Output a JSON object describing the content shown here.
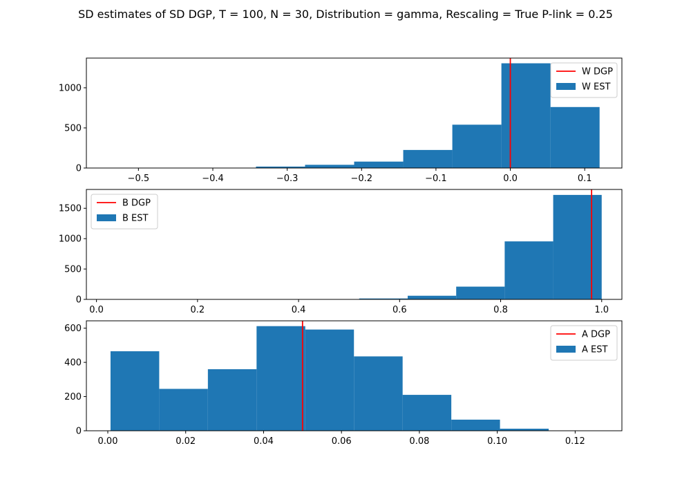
{
  "figure": {
    "title": "SD estimates of SD DGP, T = 100, N = 30, Distribution = gamma, Rescaling = True  P-link = 0.25"
  },
  "colors": {
    "hist": "#1f77b4",
    "dgp_line": "#ff0000",
    "axes": "#000000"
  },
  "chart_data": [
    {
      "type": "bar",
      "subtype": "histogram",
      "title": "",
      "xlabel": "",
      "ylabel": "",
      "xlim": [
        -0.57,
        0.15
      ],
      "ylim": [
        0,
        1370
      ],
      "x_ticks": [
        -0.5,
        -0.4,
        -0.3,
        -0.2,
        -0.1,
        0.0,
        0.1
      ],
      "x_tick_labels": [
        "−0.5",
        "−0.4",
        "−0.3",
        "−0.2",
        "−0.1",
        "0.0",
        "0.1"
      ],
      "y_ticks": [
        0,
        500,
        1000
      ],
      "y_tick_labels": [
        "0",
        "500",
        "1000"
      ],
      "bin_edges": [
        -0.54,
        -0.474,
        -0.408,
        -0.342,
        -0.276,
        -0.21,
        -0.144,
        -0.078,
        -0.012,
        0.054,
        0.12
      ],
      "counts": [
        1,
        2,
        3,
        18,
        40,
        80,
        225,
        540,
        1305,
        760
      ],
      "vline": {
        "x": 0.0,
        "name": "W DGP"
      },
      "series_name": "W EST",
      "legend": {
        "placement": "top-right",
        "entries": [
          "W DGP",
          "W EST"
        ]
      }
    },
    {
      "type": "bar",
      "subtype": "histogram",
      "title": "",
      "xlabel": "",
      "ylabel": "",
      "xlim": [
        -0.02,
        1.04
      ],
      "ylim": [
        0,
        1810
      ],
      "x_ticks": [
        0.0,
        0.2,
        0.4,
        0.6,
        0.8,
        1.0
      ],
      "x_tick_labels": [
        "0.0",
        "0.2",
        "0.4",
        "0.6",
        "0.8",
        "1.0"
      ],
      "y_ticks": [
        0,
        500,
        1000,
        1500
      ],
      "y_tick_labels": [
        "0",
        "500",
        "1000",
        "1500"
      ],
      "bin_edges": [
        0.04,
        0.136,
        0.232,
        0.328,
        0.424,
        0.52,
        0.616,
        0.712,
        0.808,
        0.904,
        1.0
      ],
      "counts": [
        0,
        1,
        2,
        3,
        5,
        15,
        60,
        210,
        955,
        1720
      ],
      "vline": {
        "x": 0.98,
        "name": "B DGP"
      },
      "series_name": "B EST",
      "legend": {
        "placement": "top-left",
        "entries": [
          "B DGP",
          "B EST"
        ]
      }
    },
    {
      "type": "bar",
      "subtype": "histogram",
      "title": "",
      "xlabel": "",
      "ylabel": "",
      "xlim": [
        -0.0055,
        0.132
      ],
      "ylim": [
        0,
        643
      ],
      "x_ticks": [
        0.0,
        0.02,
        0.04,
        0.06,
        0.08,
        0.1,
        0.12
      ],
      "x_tick_labels": [
        "0.00",
        "0.02",
        "0.04",
        "0.06",
        "0.08",
        "0.10",
        "0.12"
      ],
      "y_ticks": [
        0,
        200,
        400,
        600
      ],
      "y_tick_labels": [
        "0",
        "200",
        "400",
        "600"
      ],
      "bin_edges": [
        0.0007,
        0.0132,
        0.0257,
        0.0382,
        0.0507,
        0.0632,
        0.0757,
        0.0882,
        0.1007,
        0.1132,
        0.1257
      ],
      "counts": [
        465,
        245,
        360,
        612,
        592,
        435,
        210,
        65,
        12,
        2
      ],
      "vline": {
        "x": 0.05,
        "name": "A DGP"
      },
      "series_name": "A EST",
      "legend": {
        "placement": "top-right",
        "entries": [
          "A DGP",
          "A EST"
        ]
      }
    }
  ]
}
